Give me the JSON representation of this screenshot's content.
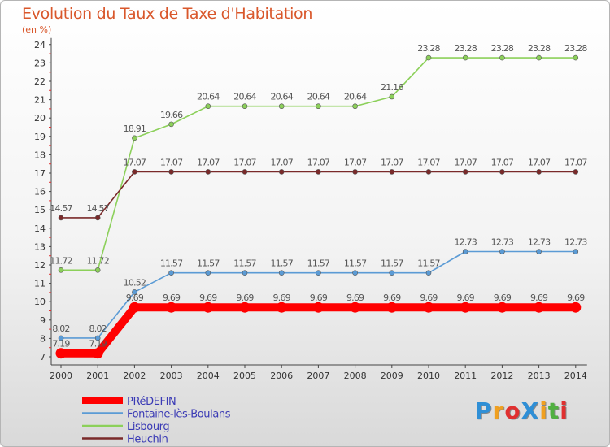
{
  "chart_data": {
    "type": "line",
    "title": "Evolution du Taux de Taxe d'Habitation",
    "ylabel": "(en %)",
    "x": [
      "2000",
      "2001",
      "2002",
      "2003",
      "2004",
      "2005",
      "2006",
      "2007",
      "2008",
      "2009",
      "2010",
      "2011",
      "2012",
      "2013",
      "2014"
    ],
    "ylim": [
      7,
      24
    ],
    "yticks": [
      7,
      8,
      9,
      10,
      11,
      12,
      13,
      14,
      15,
      16,
      17,
      18,
      19,
      20,
      21,
      22,
      23,
      24
    ],
    "grid": false,
    "legend_position": "bottom-left",
    "series": [
      {
        "name": "PRéDEFIN",
        "color": "#ff0000",
        "bold": true,
        "values": [
          7.19,
          7.19,
          9.69,
          9.69,
          9.69,
          9.69,
          9.69,
          9.69,
          9.69,
          9.69,
          9.69,
          9.69,
          9.69,
          9.69,
          9.69
        ],
        "labels": [
          "7.19",
          "7.19",
          "9.69",
          "9.69",
          "9.69",
          "9.69",
          "9.69",
          "9.69",
          "9.69",
          "9.69",
          "9.69",
          "9.69",
          "9.69",
          "9.69",
          "9.69"
        ]
      },
      {
        "name": "Fontaine-lès-Boulans",
        "color": "#5b9bd5",
        "values": [
          8.02,
          8.02,
          10.52,
          11.57,
          11.57,
          11.57,
          11.57,
          11.57,
          11.57,
          11.57,
          11.57,
          12.73,
          12.73,
          12.73,
          12.73
        ],
        "labels": [
          "8.02",
          "8.02",
          "10.52",
          "11.57",
          "11.57",
          "11.57",
          "11.57",
          "11.57",
          "11.57",
          "11.57",
          "11.57",
          "12.73",
          "12.73",
          "12.73",
          "12.73"
        ]
      },
      {
        "name": "Lisbourg",
        "color": "#8cd05a",
        "values": [
          11.72,
          11.72,
          18.91,
          19.66,
          20.64,
          20.64,
          20.64,
          20.64,
          20.64,
          21.16,
          23.28,
          23.28,
          23.28,
          23.28,
          23.28
        ],
        "labels": [
          "11.72",
          "11.72",
          "18.91",
          "19.66",
          "20.64",
          "20.64",
          "20.64",
          "20.64",
          "20.64",
          "21.16",
          "23.28",
          "23.28",
          "23.28",
          "23.28",
          "23.28"
        ]
      },
      {
        "name": "Heuchin",
        "color": "#7a2a2a",
        "values": [
          14.57,
          14.57,
          17.07,
          17.07,
          17.07,
          17.07,
          17.07,
          17.07,
          17.07,
          17.07,
          17.07,
          17.07,
          17.07,
          17.07,
          17.07
        ],
        "labels": [
          "14.57",
          "14.57",
          "17.07",
          "17.07",
          "17.07",
          "17.07",
          "17.07",
          "17.07",
          "17.07",
          "17.07",
          "17.07",
          "17.07",
          "17.07",
          "17.07",
          "17.07"
        ]
      }
    ]
  },
  "logo": {
    "text": "ProXiti",
    "letters": [
      "P",
      "r",
      "o",
      "X",
      "i",
      "t",
      "i"
    ],
    "colors": [
      "#2f8fd6",
      "#f0a020",
      "#e03030",
      "#2f8fd6",
      "#f0a020",
      "#50b040",
      "#e03030"
    ]
  }
}
